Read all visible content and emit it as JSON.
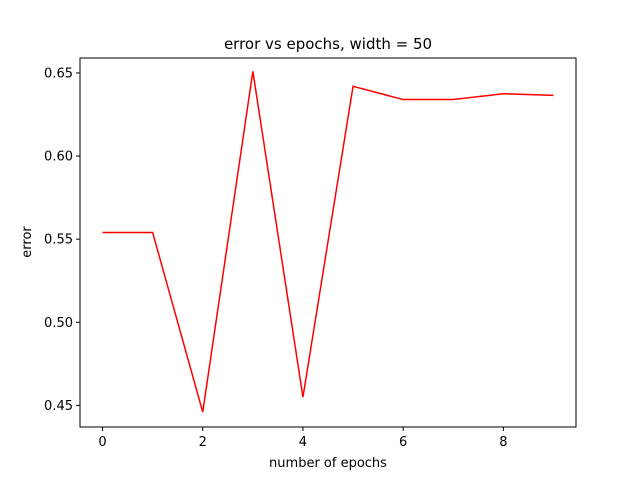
{
  "chart_data": {
    "type": "line",
    "title": "error vs epochs, width = 50",
    "xlabel": "number of epochs",
    "ylabel": "error",
    "xlim": [
      -0.45,
      9.45
    ],
    "ylim": [
      0.437,
      0.659
    ],
    "x_ticks": [
      0,
      2,
      4,
      6,
      8
    ],
    "x_tick_labels": [
      "0",
      "2",
      "4",
      "6",
      "8"
    ],
    "y_ticks": [
      0.45,
      0.5,
      0.55,
      0.6,
      0.65
    ],
    "y_tick_labels": [
      "0.45",
      "0.50",
      "0.55",
      "0.60",
      "0.65"
    ],
    "grid": false,
    "series": [
      {
        "color": "#ff0000",
        "x": [
          0,
          1,
          2,
          3,
          4,
          5,
          6,
          7,
          8,
          9
        ],
        "y": [
          0.554,
          0.554,
          0.446,
          0.651,
          0.455,
          0.642,
          0.634,
          0.634,
          0.6375,
          0.6365
        ]
      }
    ]
  }
}
